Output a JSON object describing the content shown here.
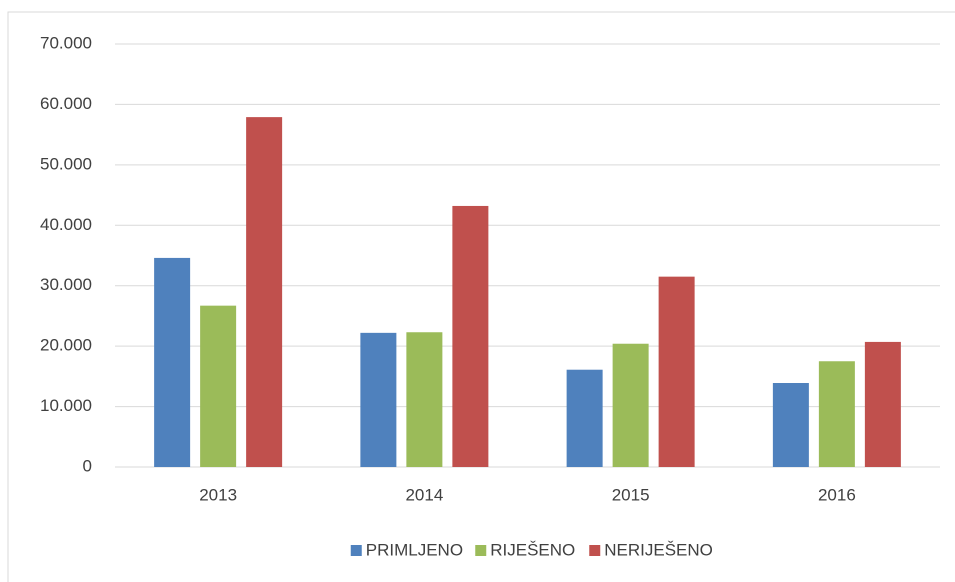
{
  "chart_data": {
    "type": "bar",
    "categories": [
      "2013",
      "2014",
      "2015",
      "2016"
    ],
    "series": [
      {
        "name": "PRIMLJENO",
        "color": "#4f81bd",
        "values": [
          34600,
          22200,
          16100,
          13900
        ]
      },
      {
        "name": "RIJEŠENO",
        "color": "#9bbb59",
        "values": [
          26700,
          22300,
          20400,
          17500
        ]
      },
      {
        "name": "NERIJEŠENO",
        "color": "#c0504d",
        "values": [
          57900,
          43200,
          31500,
          20700
        ]
      }
    ],
    "ylim": [
      0,
      70000
    ],
    "yticks": [
      0,
      {
        "value": 10000,
        "label": "10.000"
      },
      {
        "value": 20000,
        "label": "20.000"
      },
      {
        "value": 30000,
        "label": "30.000"
      },
      {
        "value": 40000,
        "label": "40.000"
      },
      {
        "value": 50000,
        "label": "50.000"
      },
      {
        "value": 60000,
        "label": "60.000"
      },
      {
        "value": 70000,
        "label": "70.000"
      }
    ],
    "grid": true,
    "legend": "bottom"
  }
}
